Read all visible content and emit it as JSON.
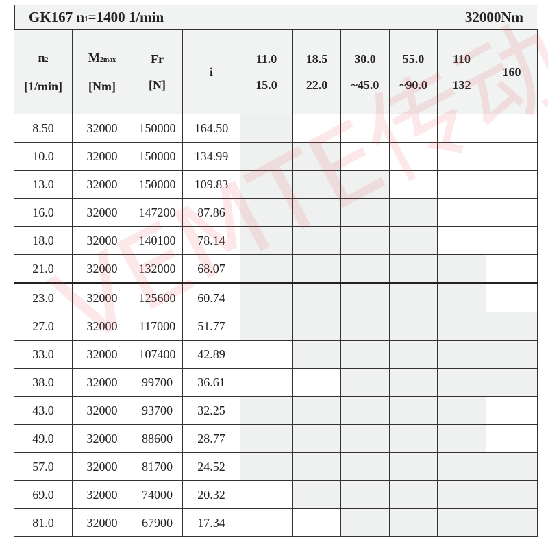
{
  "title": {
    "model": "GK167",
    "n1_prefix": "n",
    "n1_sub": "1",
    "n1_value": "=1400 1/min",
    "torque": "32000Nm"
  },
  "headers": {
    "n2": {
      "symbol": "n",
      "sub": "2",
      "unit": "[1/min]"
    },
    "m2max": {
      "symbol": "M",
      "sub": "2max",
      "unit": "[Nm]"
    },
    "fr": {
      "symbol": "Fr",
      "unit": "[N]"
    },
    "i": {
      "symbol": "i"
    },
    "motors": [
      {
        "line1": "11.0",
        "line2": "15.0"
      },
      {
        "line1": "18.5",
        "line2": "22.0"
      },
      {
        "line1": "30.0",
        "line2": "~45.0"
      },
      {
        "line1": "55.0",
        "line2": "~90.0"
      },
      {
        "line1": "110",
        "line2": "132"
      },
      {
        "line1": "160",
        "line2": ""
      }
    ]
  },
  "rows": [
    {
      "n2": "8.50",
      "m2": "32000",
      "fr": "150000",
      "i": "164.50",
      "avail": [
        1,
        0,
        0,
        0,
        0,
        0
      ]
    },
    {
      "n2": "10.0",
      "m2": "32000",
      "fr": "150000",
      "i": "134.99",
      "avail": [
        1,
        1,
        0,
        0,
        0,
        0
      ]
    },
    {
      "n2": "13.0",
      "m2": "32000",
      "fr": "150000",
      "i": "109.83",
      "avail": [
        1,
        1,
        1,
        0,
        0,
        0
      ]
    },
    {
      "n2": "16.0",
      "m2": "32000",
      "fr": "147200",
      "i": "87.86",
      "avail": [
        1,
        1,
        1,
        1,
        0,
        0
      ]
    },
    {
      "n2": "18.0",
      "m2": "32000",
      "fr": "140100",
      "i": "78.14",
      "avail": [
        1,
        1,
        1,
        1,
        0,
        0
      ]
    },
    {
      "n2": "21.0",
      "m2": "32000",
      "fr": "132000",
      "i": "68.07",
      "avail": [
        1,
        1,
        1,
        1,
        1,
        0
      ]
    },
    {
      "n2": "23.0",
      "m2": "32000",
      "fr": "125600",
      "i": "60.74",
      "avail": [
        1,
        1,
        1,
        1,
        1,
        0
      ]
    },
    {
      "n2": "27.0",
      "m2": "32000",
      "fr": "117000",
      "i": "51.77",
      "avail": [
        1,
        1,
        1,
        1,
        1,
        1
      ]
    },
    {
      "n2": "33.0",
      "m2": "32000",
      "fr": "107400",
      "i": "42.89",
      "avail": [
        0,
        1,
        1,
        1,
        1,
        1
      ]
    },
    {
      "n2": "38.0",
      "m2": "32000",
      "fr": "99700",
      "i": "36.61",
      "avail": [
        0,
        0,
        1,
        1,
        1,
        1
      ]
    },
    {
      "n2": "43.0",
      "m2": "32000",
      "fr": "93700",
      "i": "32.25",
      "avail": [
        1,
        1,
        1,
        1,
        1,
        0
      ]
    },
    {
      "n2": "49.0",
      "m2": "32000",
      "fr": "88600",
      "i": "28.77",
      "avail": [
        1,
        1,
        1,
        1,
        1,
        0
      ]
    },
    {
      "n2": "57.0",
      "m2": "32000",
      "fr": "81700",
      "i": "24.52",
      "avail": [
        1,
        1,
        1,
        1,
        1,
        1
      ]
    },
    {
      "n2": "69.0",
      "m2": "32000",
      "fr": "74000",
      "i": "20.32",
      "avail": [
        0,
        1,
        1,
        1,
        1,
        1
      ]
    },
    {
      "n2": "81.0",
      "m2": "32000",
      "fr": "67900",
      "i": "17.34",
      "avail": [
        0,
        0,
        1,
        1,
        1,
        1
      ]
    }
  ],
  "colors": {
    "available": "#eff0f0",
    "unavailable": "#ffffff",
    "watermark": "#e65050"
  },
  "watermark": "VEMTE传动"
}
